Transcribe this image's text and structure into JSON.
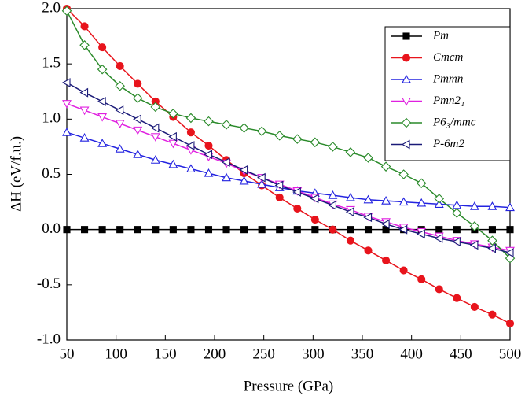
{
  "chart_data": {
    "type": "line",
    "xlabel": "Pressure (GPa)",
    "ylabel": "ΔH (eV/f.u.)",
    "x": [
      50,
      68,
      86,
      104,
      122,
      140,
      158,
      176,
      194,
      212,
      230,
      248,
      266,
      284,
      302,
      320,
      338,
      356,
      374,
      392,
      410,
      428,
      446,
      464,
      482,
      500
    ],
    "xlim": [
      50,
      500
    ],
    "xticks": [
      50,
      100,
      150,
      200,
      250,
      300,
      350,
      400,
      450,
      500
    ],
    "ylim": [
      -1.0,
      2.0
    ],
    "yticks": [
      {
        "value": -1.0,
        "label": "-1.0"
      },
      {
        "value": -0.5,
        "label": "-0.5"
      },
      {
        "value": 0.0,
        "label": "0.0"
      },
      {
        "value": 0.5,
        "label": "0.5"
      },
      {
        "value": 1.0,
        "label": "1.0"
      },
      {
        "value": 1.5,
        "label": "1.5"
      },
      {
        "value": 2.0,
        "label": "2.0"
      }
    ],
    "legend": "upper right",
    "series": [
      {
        "name": "Pm",
        "color": "#000000",
        "marker": "square",
        "filled": true,
        "values": [
          0,
          0,
          0,
          0,
          0,
          0,
          0,
          0,
          0,
          0,
          0,
          0,
          0,
          0,
          0,
          0,
          0,
          0,
          0,
          0,
          0,
          0,
          0,
          0,
          0,
          0
        ]
      },
      {
        "name": "Cmcm",
        "color": "#e8141c",
        "marker": "circle",
        "filled": true,
        "values": [
          2.0,
          1.84,
          1.65,
          1.48,
          1.32,
          1.16,
          1.02,
          0.88,
          0.76,
          0.63,
          0.51,
          0.4,
          0.29,
          0.19,
          0.09,
          0.0,
          -0.1,
          -0.19,
          -0.28,
          -0.37,
          -0.45,
          -0.54,
          -0.62,
          -0.7,
          -0.77,
          -0.85
        ]
      },
      {
        "name": "Pmmn",
        "color": "#2323e0",
        "marker": "triangle-up",
        "filled": false,
        "values": [
          0.88,
          0.83,
          0.78,
          0.73,
          0.68,
          0.63,
          0.59,
          0.55,
          0.51,
          0.47,
          0.44,
          0.41,
          0.38,
          0.35,
          0.33,
          0.31,
          0.29,
          0.27,
          0.26,
          0.25,
          0.24,
          0.23,
          0.22,
          0.21,
          0.21,
          0.2
        ]
      },
      {
        "name": "Pmn2₁",
        "color": "#e020e0",
        "marker": "triangle-down",
        "filled": false,
        "values": [
          1.14,
          1.08,
          1.02,
          0.96,
          0.9,
          0.84,
          0.78,
          0.72,
          0.66,
          0.6,
          0.53,
          0.47,
          0.41,
          0.35,
          0.29,
          0.23,
          0.18,
          0.12,
          0.07,
          0.02,
          -0.02,
          -0.06,
          -0.1,
          -0.13,
          -0.16,
          -0.19
        ]
      },
      {
        "name": "P6₃/mmc",
        "color": "#2a8a2a",
        "marker": "diamond",
        "filled": false,
        "values": [
          1.98,
          1.67,
          1.45,
          1.3,
          1.19,
          1.11,
          1.05,
          1.01,
          0.98,
          0.95,
          0.92,
          0.89,
          0.85,
          0.82,
          0.79,
          0.75,
          0.7,
          0.65,
          0.57,
          0.5,
          0.42,
          0.28,
          0.15,
          0.03,
          -0.1,
          -0.26
        ]
      },
      {
        "name": "P-6m2",
        "color": "#1a1a78",
        "marker": "triangle-left",
        "filled": false,
        "values": [
          1.33,
          1.24,
          1.16,
          1.08,
          1.0,
          0.92,
          0.84,
          0.76,
          0.68,
          0.61,
          0.54,
          0.47,
          0.4,
          0.34,
          0.28,
          0.22,
          0.16,
          0.11,
          0.05,
          0.0,
          -0.04,
          -0.08,
          -0.11,
          -0.14,
          -0.17,
          -0.21
        ]
      }
    ]
  }
}
